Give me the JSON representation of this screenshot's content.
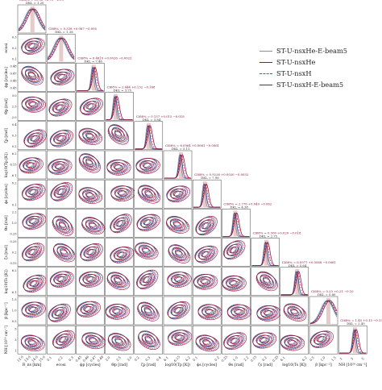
{
  "chart_data": {
    "type": "scatter",
    "variables": [
      "R_{ns} [km]",
      "ecosi",
      "ϕ_p [cycles]",
      "Θ_p [rad]",
      "ζ_p [rad]",
      "log10(T_p [K])",
      "ϕ_s [cycles]",
      "Θ_s [rad]",
      "ζ_s [rad]",
      "log10(T_s [K])",
      "β [kpc⁻²]",
      "N_H [10²⁰ cm⁻²]"
    ],
    "axis_labels": [
      "R_ns [km]",
      "ecosi",
      "ϕp [cycles]",
      "Θp [rad]",
      "ζp [rad]",
      "log10(Tp [K])",
      "ϕs [cycles]",
      "Θs [rad]",
      "ζs [rad]",
      "log10(Ts [K])",
      "β [kpc⁻²]",
      "NH [10²⁰ cm⁻²]"
    ],
    "tick_labels": [
      [
        "12.0",
        "13.0",
        "14.0",
        "15.0"
      ],
      [
        "0.1",
        "0.2",
        "0.3"
      ],
      [
        "0.45",
        "0.46",
        "0.47",
        "0.48"
      ],
      [
        "2.0",
        "2.5",
        "3.0"
      ],
      [
        "0.2",
        "0.3",
        "0.4"
      ],
      [
        "6.1",
        "6.15",
        "6.2"
      ],
      [
        "0.1",
        "0.2"
      ],
      [
        "0.25",
        "1.0",
        "2.2"
      ],
      [
        "0.15",
        "0.2",
        "0.25"
      ],
      [
        "6.1",
        "6.2"
      ],
      [
        "0.5",
        "1.0",
        "1.5"
      ],
      [
        "1",
        "3",
        "5"
      ]
    ],
    "annotations": [
      {
        "cl": "CI68% = 10.53 +2.70 −2.09",
        "d": "DKL = 1.20"
      },
      {
        "cl": "CI68% = 0.338 +0.087 −0.095",
        "d": "DKL = 1.38"
      },
      {
        "cl": "CI68% = 0.4619 +0.0026 −0.0022",
        "d": "DKL = 7.46"
      },
      {
        "cl": "CI68% = 2.444 +0.132 −0.168",
        "d": "DKL = 3.75"
      },
      {
        "cl": "CI68% = 0.137 +0.015 −0.018",
        "d": "DKL = 3.84"
      },
      {
        "cl": "CI68% = 6.0964 +0.0061 −0.0061",
        "d": "DKL = 5.11"
      },
      {
        "cl": "CI68% = 0.9226 +0.0020 −0.0032",
        "d": "DKL = 7.96"
      },
      {
        "cl": "CI68% = 2.770 +0.049 −0.062",
        "d": "DKL = 4.38"
      },
      {
        "cl": "CI68% = 0.300 +0.020 −0.018",
        "d": "DKL = 2.75"
      },
      {
        "cl": "CI68% = 6.0977 +0.0068 −0.0061",
        "d": "DKL = 5.64"
      },
      {
        "cl": "CI68% = 0.23 +0.21 −0.10",
        "d": "DKL = 0.80"
      },
      {
        "cl": "CI68% = 1.45 +0.13 −0.15",
        "d": "DKL = 2.40"
      }
    ],
    "series": [
      {
        "name": "ST-U-nsxHe-E-beam5",
        "color": "#8c8c8c",
        "style": "solid"
      },
      {
        "name": "ST-U-nsxHe",
        "color": "#2b3a8c",
        "style": "solid"
      },
      {
        "name": "ST-U-nsxH",
        "color": "#d6245a",
        "style": "dashed"
      },
      {
        "name": "ST-U-nsxH-E-beam5",
        "color": "#8b1a3a",
        "style": "solid"
      }
    ],
    "grid": false,
    "legend_placement": "top-right"
  }
}
